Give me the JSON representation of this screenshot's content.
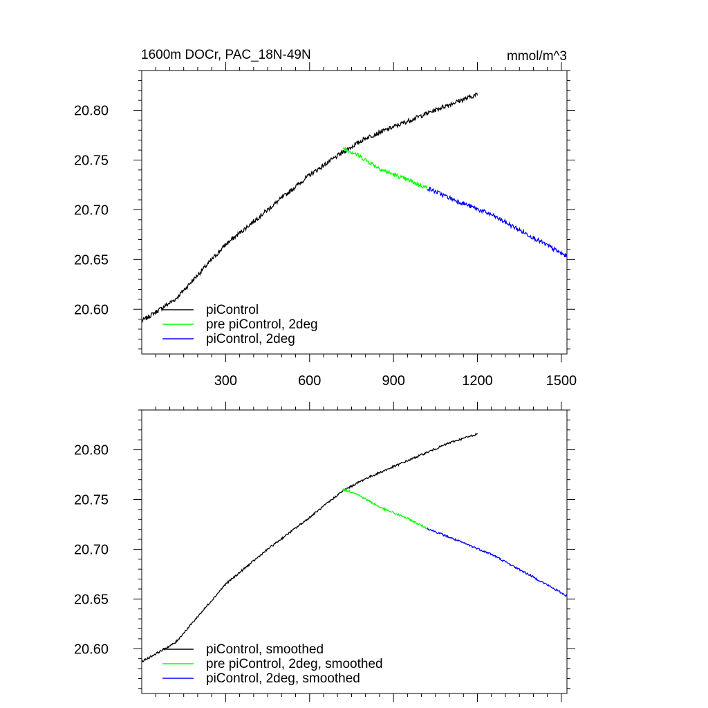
{
  "figure": {
    "title": "1600m DOCr, PAC_18N-49N",
    "units": "mmol/m^3"
  },
  "chart_data": [
    {
      "type": "line",
      "panel": "top",
      "xlim": [
        0,
        1520
      ],
      "ylim": [
        20.555,
        20.84
      ],
      "x_ticks": [
        300,
        600,
        900,
        1200,
        1500
      ],
      "x_tick_labels": [
        "300",
        "600",
        "900",
        "1200",
        "1500"
      ],
      "y_ticks": [
        20.6,
        20.65,
        20.7,
        20.75,
        20.8
      ],
      "y_tick_labels": [
        "20.60",
        "20.65",
        "20.70",
        "20.75",
        "20.80"
      ],
      "legend_position": "bottom-left",
      "noise": 0.0022,
      "series": [
        {
          "name": "piControl",
          "color": "#000000",
          "x": [
            0,
            120,
            300,
            450,
            600,
            720,
            800,
            950,
            1100,
            1200
          ],
          "y": [
            20.588,
            20.61,
            20.665,
            20.7,
            20.735,
            20.758,
            20.772,
            20.789,
            20.806,
            20.816
          ]
        },
        {
          "name": "pre piControl, 2deg",
          "color": "#00ff00",
          "x": [
            720,
            760,
            860,
            950,
            1020
          ],
          "y": [
            20.762,
            20.757,
            20.74,
            20.73,
            20.722
          ]
        },
        {
          "name": "piControl, 2deg",
          "color": "#0000ff",
          "x": [
            1020,
            1100,
            1250,
            1400,
            1520
          ],
          "y": [
            20.722,
            20.712,
            20.695,
            20.672,
            20.653
          ]
        }
      ]
    },
    {
      "type": "line",
      "panel": "bottom",
      "xlim": [
        0,
        1520
      ],
      "ylim": [
        20.555,
        20.84
      ],
      "x_ticks": [
        300,
        600,
        900,
        1200,
        1500
      ],
      "y_ticks": [
        20.6,
        20.65,
        20.7,
        20.75,
        20.8
      ],
      "y_tick_labels": [
        "20.60",
        "20.65",
        "20.70",
        "20.75",
        "20.80"
      ],
      "legend_position": "bottom-left",
      "noise": 0.001,
      "series": [
        {
          "name": "piControl, smoothed",
          "color": "#000000",
          "x": [
            0,
            120,
            300,
            450,
            600,
            720,
            800,
            950,
            1100,
            1200
          ],
          "y": [
            20.587,
            20.606,
            20.665,
            20.7,
            20.732,
            20.759,
            20.771,
            20.789,
            20.807,
            20.816
          ]
        },
        {
          "name": "pre piControl, 2deg, smoothed",
          "color": "#00ff00",
          "x": [
            720,
            760,
            860,
            950,
            1020
          ],
          "y": [
            20.76,
            20.757,
            20.741,
            20.731,
            20.721
          ]
        },
        {
          "name": "piControl, 2deg, smoothed",
          "color": "#0000ff",
          "x": [
            1020,
            1100,
            1250,
            1400,
            1520
          ],
          "y": [
            20.721,
            20.712,
            20.695,
            20.672,
            20.653
          ]
        }
      ]
    }
  ]
}
